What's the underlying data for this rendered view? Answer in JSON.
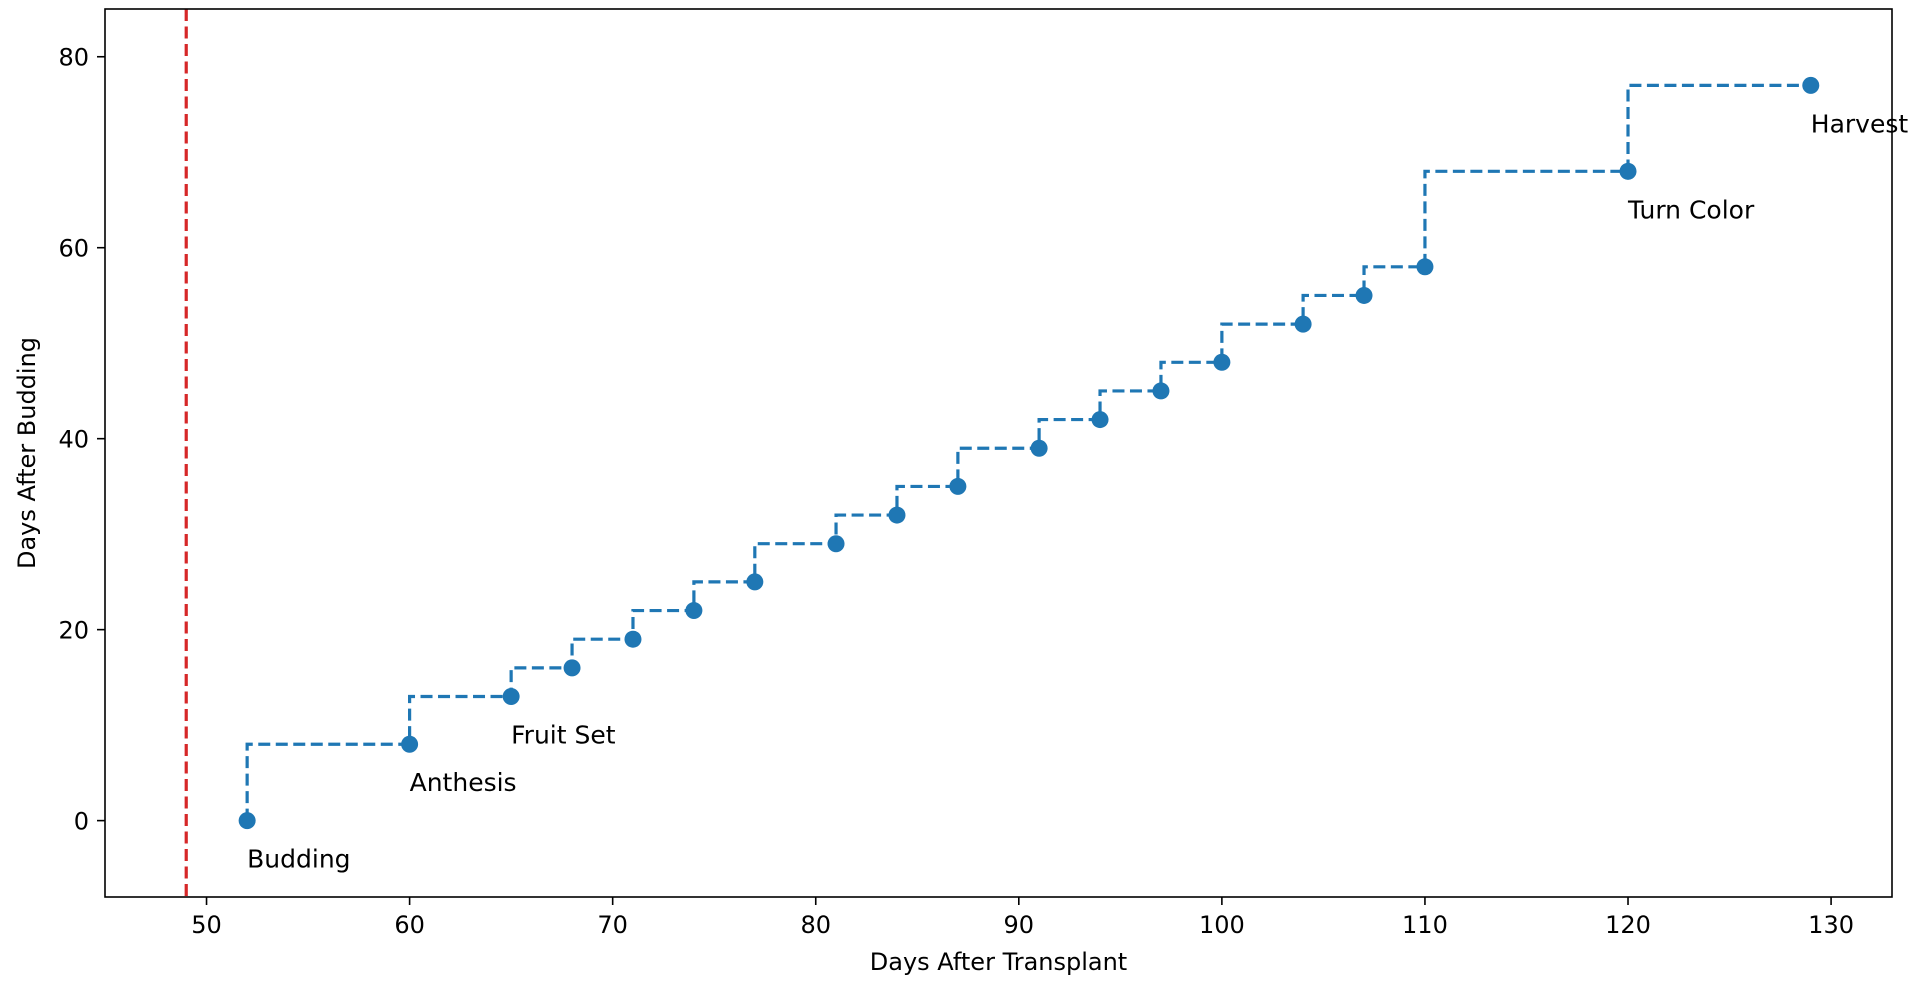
{
  "chart_data": {
    "type": "line",
    "subtype": "step",
    "xlabel": "Days After Transplant",
    "ylabel": "Days After Budding",
    "xlim": [
      45,
      133
    ],
    "ylim": [
      -8,
      85
    ],
    "xticks": [
      50,
      60,
      70,
      80,
      90,
      100,
      110,
      120,
      130
    ],
    "yticks": [
      0,
      20,
      40,
      60,
      80
    ],
    "grid": false,
    "series": [
      {
        "color": "#1f77b4",
        "line_style": "dashed",
        "step": "pre",
        "marker": "circle",
        "points": [
          {
            "x": 52,
            "y": 0
          },
          {
            "x": 60,
            "y": 8
          },
          {
            "x": 65,
            "y": 13
          },
          {
            "x": 68,
            "y": 16
          },
          {
            "x": 71,
            "y": 19
          },
          {
            "x": 74,
            "y": 22
          },
          {
            "x": 77,
            "y": 25
          },
          {
            "x": 81,
            "y": 29
          },
          {
            "x": 84,
            "y": 32
          },
          {
            "x": 87,
            "y": 35
          },
          {
            "x": 91,
            "y": 39
          },
          {
            "x": 94,
            "y": 42
          },
          {
            "x": 97,
            "y": 45
          },
          {
            "x": 100,
            "y": 48
          },
          {
            "x": 104,
            "y": 52
          },
          {
            "x": 107,
            "y": 55
          },
          {
            "x": 110,
            "y": 58
          },
          {
            "x": 120,
            "y": 68
          },
          {
            "x": 129,
            "y": 77
          }
        ]
      }
    ],
    "reference_lines": [
      {
        "orientation": "vertical",
        "x": 49,
        "color": "#d62728",
        "line_style": "dashed"
      }
    ],
    "annotations": [
      {
        "text": "Budding",
        "x": 52,
        "y": 0
      },
      {
        "text": "Anthesis",
        "x": 60,
        "y": 8
      },
      {
        "text": "Fruit Set",
        "x": 65,
        "y": 13
      },
      {
        "text": "Turn Color",
        "x": 120,
        "y": 68
      },
      {
        "text": "Harvest",
        "x": 129,
        "y": 77
      }
    ]
  }
}
